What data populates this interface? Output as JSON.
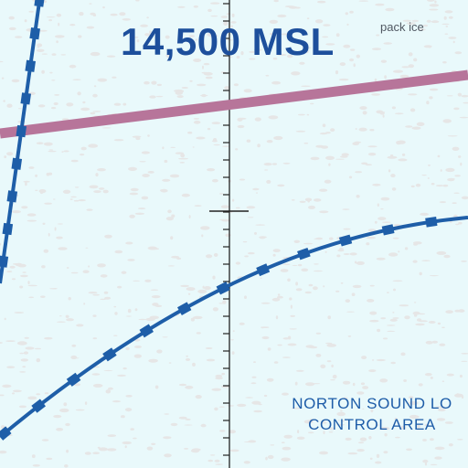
{
  "map": {
    "altitude_label": "14,500 MSL",
    "terrain_label": "pack ice",
    "area_label": {
      "line1": "NORTON SOUND LO",
      "line2": "CONTROL AREA"
    }
  },
  "colors": {
    "water": "#e9f9fb",
    "ice_speckle": "#e6e6e6",
    "boundary_blue": "#1e5ea8",
    "airway_magenta": "#b7759a",
    "tick_dark": "#222222"
  }
}
